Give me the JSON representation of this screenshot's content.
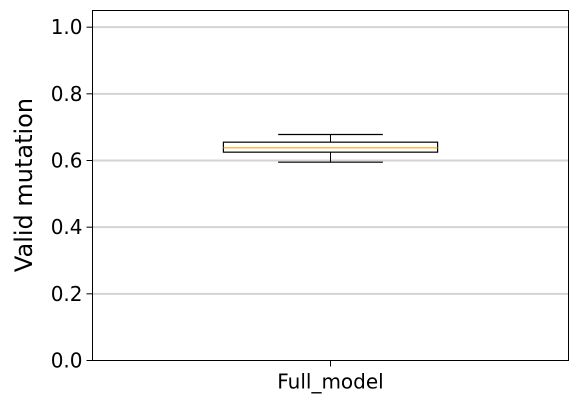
{
  "chart_data": {
    "type": "box",
    "title": "",
    "xlabel": "",
    "ylabel": "Valid mutation",
    "ylim": [
      0.0,
      1.05
    ],
    "yticks": [
      0.0,
      0.2,
      0.4,
      0.6,
      0.8,
      1.0
    ],
    "ytick_labels": [
      "0.0",
      "0.2",
      "0.4",
      "0.6",
      "0.8",
      "1.0"
    ],
    "grid": "horizontal",
    "categories": [
      "Full_model"
    ],
    "boxes": [
      {
        "category": "Full_model",
        "whisker_low": 0.595,
        "q1": 0.625,
        "median": 0.638,
        "q3": 0.655,
        "whisker_high": 0.678
      }
    ],
    "colors": {
      "box_edge": "#000000",
      "median": "#ffa500",
      "grid": "#d3d3d3",
      "axes": "#000000"
    }
  }
}
